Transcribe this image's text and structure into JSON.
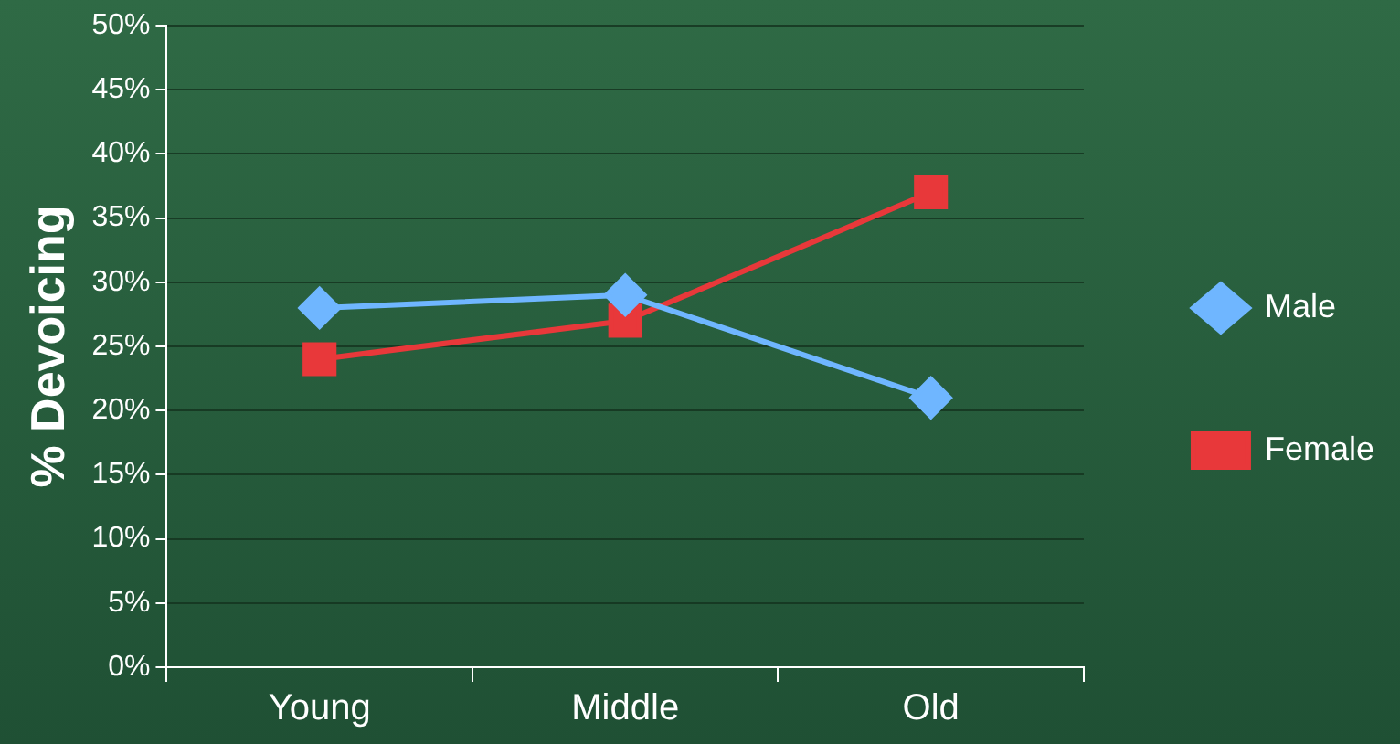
{
  "chart_data": {
    "type": "line",
    "ylabel": "% Devoicing",
    "categories": [
      "Young",
      "Middle",
      "Old"
    ],
    "series": [
      {
        "name": "Male",
        "color": "#6fb6ff",
        "values": [
          28,
          29,
          21
        ],
        "marker": "diamond"
      },
      {
        "name": "Female",
        "color": "#e8383a",
        "values": [
          24,
          27,
          37
        ],
        "marker": "square"
      }
    ],
    "ylim": [
      0,
      50
    ],
    "yticks": [
      {
        "value": 0,
        "label": "0%"
      },
      {
        "value": 5,
        "label": "5%"
      },
      {
        "value": 10,
        "label": "10%"
      },
      {
        "value": 15,
        "label": "15%"
      },
      {
        "value": 20,
        "label": "20%"
      },
      {
        "value": 25,
        "label": "25%"
      },
      {
        "value": 30,
        "label": "30%"
      },
      {
        "value": 35,
        "label": "35%"
      },
      {
        "value": 40,
        "label": "40%"
      },
      {
        "value": 45,
        "label": "45%"
      },
      {
        "value": 50,
        "label": "50%"
      }
    ],
    "grid": "y",
    "legend": "right"
  }
}
